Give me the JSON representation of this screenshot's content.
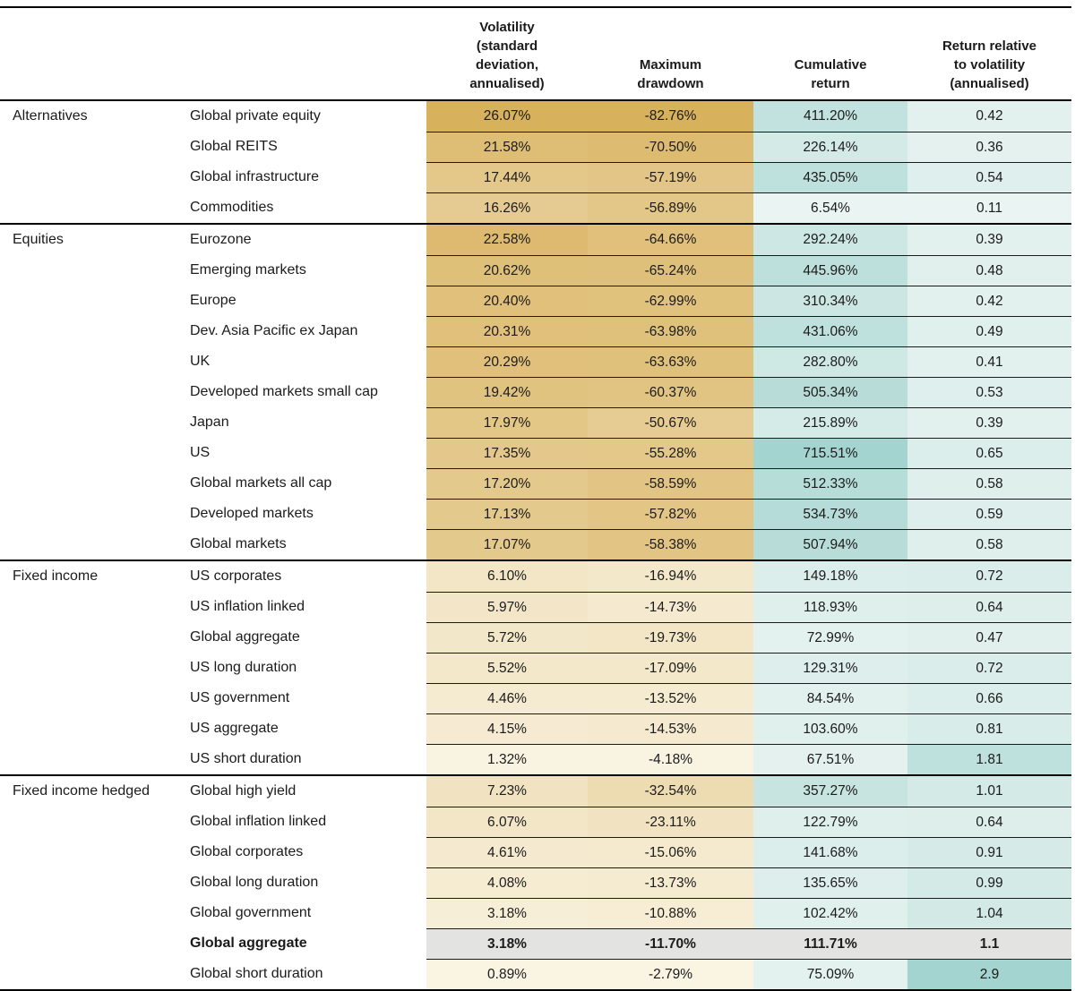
{
  "chart_data": {
    "type": "table",
    "columns": [
      {
        "label": "Volatility\n(standard\ndeviation,\nannualised)"
      },
      {
        "label": "Maximum\ndrawdown"
      },
      {
        "label": "Cumulative\nreturn"
      },
      {
        "label": "Return relative\nto volatility\n(annualised)"
      }
    ],
    "heatmap": {
      "gold": {
        "light": "#FAF4E3",
        "dark": "#D8B15C"
      },
      "teal": {
        "light": "#EAF4F2",
        "dark": "#A3D4CF"
      },
      "highlight_bg": "#E3E3E2",
      "ranges": {
        "volatility": [
          0.89,
          26.07
        ],
        "drawdown": [
          2.79,
          82.76
        ],
        "cumulative": [
          6.54,
          715.51
        ],
        "ratio": [
          0.11,
          2.9
        ]
      }
    },
    "groups": [
      {
        "name": "Alternatives",
        "rows": [
          {
            "asset": "Global private equity",
            "volatility": "26.07%",
            "drawdown": "-82.76%",
            "cumulative": "411.20%",
            "ratio": "0.42"
          },
          {
            "asset": "Global REITS",
            "volatility": "21.58%",
            "drawdown": "-70.50%",
            "cumulative": "226.14%",
            "ratio": "0.36"
          },
          {
            "asset": "Global infrastructure",
            "volatility": "17.44%",
            "drawdown": "-57.19%",
            "cumulative": "435.05%",
            "ratio": "0.54"
          },
          {
            "asset": "Commodities",
            "volatility": "16.26%",
            "drawdown": "-56.89%",
            "cumulative": "6.54%",
            "ratio": "0.11"
          }
        ]
      },
      {
        "name": "Equities",
        "rows": [
          {
            "asset": "Eurozone",
            "volatility": "22.58%",
            "drawdown": "-64.66%",
            "cumulative": "292.24%",
            "ratio": "0.39"
          },
          {
            "asset": "Emerging markets",
            "volatility": "20.62%",
            "drawdown": "-65.24%",
            "cumulative": "445.96%",
            "ratio": "0.48"
          },
          {
            "asset": "Europe",
            "volatility": "20.40%",
            "drawdown": "-62.99%",
            "cumulative": "310.34%",
            "ratio": "0.42"
          },
          {
            "asset": "Dev. Asia Pacific ex Japan",
            "volatility": "20.31%",
            "drawdown": "-63.98%",
            "cumulative": "431.06%",
            "ratio": "0.49"
          },
          {
            "asset": "UK",
            "volatility": "20.29%",
            "drawdown": "-63.63%",
            "cumulative": "282.80%",
            "ratio": "0.41"
          },
          {
            "asset": "Developed markets small cap",
            "volatility": "19.42%",
            "drawdown": "-60.37%",
            "cumulative": "505.34%",
            "ratio": "0.53"
          },
          {
            "asset": "Japan",
            "volatility": "17.97%",
            "drawdown": "-50.67%",
            "cumulative": "215.89%",
            "ratio": "0.39"
          },
          {
            "asset": "US",
            "volatility": "17.35%",
            "drawdown": "-55.28%",
            "cumulative": "715.51%",
            "ratio": "0.65"
          },
          {
            "asset": "Global markets all cap",
            "volatility": "17.20%",
            "drawdown": "-58.59%",
            "cumulative": "512.33%",
            "ratio": "0.58"
          },
          {
            "asset": "Developed markets",
            "volatility": "17.13%",
            "drawdown": "-57.82%",
            "cumulative": "534.73%",
            "ratio": "0.59"
          },
          {
            "asset": "Global markets",
            "volatility": "17.07%",
            "drawdown": "-58.38%",
            "cumulative": "507.94%",
            "ratio": "0.58"
          }
        ]
      },
      {
        "name": "Fixed income",
        "rows": [
          {
            "asset": "US corporates",
            "volatility": "6.10%",
            "drawdown": "-16.94%",
            "cumulative": "149.18%",
            "ratio": "0.72"
          },
          {
            "asset": "US inflation linked",
            "volatility": "5.97%",
            "drawdown": "-14.73%",
            "cumulative": "118.93%",
            "ratio": "0.64"
          },
          {
            "asset": "Global aggregate",
            "volatility": "5.72%",
            "drawdown": "-19.73%",
            "cumulative": "72.99%",
            "ratio": "0.47"
          },
          {
            "asset": "US long duration",
            "volatility": "5.52%",
            "drawdown": "-17.09%",
            "cumulative": "129.31%",
            "ratio": "0.72"
          },
          {
            "asset": "US government",
            "volatility": "4.46%",
            "drawdown": "-13.52%",
            "cumulative": "84.54%",
            "ratio": "0.66"
          },
          {
            "asset": "US aggregate",
            "volatility": "4.15%",
            "drawdown": "-14.53%",
            "cumulative": "103.60%",
            "ratio": "0.81"
          },
          {
            "asset": "US short duration",
            "volatility": "1.32%",
            "drawdown": "-4.18%",
            "cumulative": "67.51%",
            "ratio": "1.81"
          }
        ]
      },
      {
        "name": "Fixed income hedged",
        "rows": [
          {
            "asset": "Global high yield",
            "volatility": "7.23%",
            "drawdown": "-32.54%",
            "cumulative": "357.27%",
            "ratio": "1.01"
          },
          {
            "asset": "Global inflation linked",
            "volatility": "6.07%",
            "drawdown": "-23.11%",
            "cumulative": "122.79%",
            "ratio": "0.64"
          },
          {
            "asset": "Global corporates",
            "volatility": "4.61%",
            "drawdown": "-15.06%",
            "cumulative": "141.68%",
            "ratio": "0.91"
          },
          {
            "asset": "Global long duration",
            "volatility": "4.08%",
            "drawdown": "-13.73%",
            "cumulative": "135.65%",
            "ratio": "0.99"
          },
          {
            "asset": "Global government",
            "volatility": "3.18%",
            "drawdown": "-10.88%",
            "cumulative": "102.42%",
            "ratio": "1.04"
          },
          {
            "asset": "Global aggregate",
            "volatility": "3.18%",
            "drawdown": "-11.70%",
            "cumulative": "111.71%",
            "ratio": "1.1",
            "highlight": true
          },
          {
            "asset": "Global short duration",
            "volatility": "0.89%",
            "drawdown": "-2.79%",
            "cumulative": "75.09%",
            "ratio": "2.9"
          }
        ]
      }
    ]
  }
}
